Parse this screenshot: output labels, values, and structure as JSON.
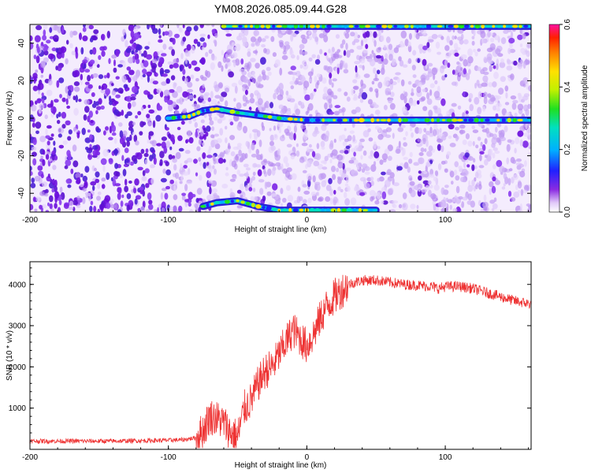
{
  "title": "YM08.2026.085.09.44.G28",
  "chart_data": [
    {
      "type": "heatmap",
      "xlabel": "Height of straight line (km)",
      "ylabel": "Frequency (Hz)",
      "xlim": [
        -200,
        162
      ],
      "ylim": [
        -50,
        50
      ],
      "xticks": [
        -200,
        -100,
        0,
        100
      ],
      "yticks": [
        -40,
        -20,
        0,
        20,
        40
      ],
      "colorbar": {
        "label": "Normalized spectral amplitude",
        "range": [
          0.0,
          0.6
        ],
        "ticks": [
          "0.0",
          "0.2",
          "0.4",
          "0.6"
        ]
      },
      "features": [
        {
          "name": "carrier line",
          "points": [
            [
              -100,
              0
            ],
            [
              -85,
              1
            ],
            [
              -75,
              4
            ],
            [
              -65,
              5
            ],
            [
              -50,
              3
            ],
            [
              -40,
              2
            ],
            [
              -30,
              1
            ],
            [
              -20,
              0
            ],
            [
              0,
              -1
            ],
            [
              162,
              -1
            ]
          ]
        },
        {
          "name": "aliased line",
          "points": [
            [
              -75,
              -47
            ],
            [
              -65,
              -45
            ],
            [
              -50,
              -44
            ],
            [
              -35,
              -47
            ],
            [
              -20,
              -49
            ],
            [
              0,
              -49
            ],
            [
              50,
              -49
            ]
          ]
        },
        {
          "name": "aliased line top",
          "points": [
            [
              -60,
              49
            ],
            [
              0,
              49
            ],
            [
              100,
              49
            ],
            [
              162,
              49
            ]
          ]
        }
      ]
    },
    {
      "type": "line",
      "xlabel": "Height of straight line (km)",
      "ylabel": "SNR (10 * v/v)",
      "xlim": [
        -200,
        162
      ],
      "ylim": [
        0,
        4550
      ],
      "xticks": [
        -200,
        -100,
        0,
        100
      ],
      "yticks": [
        1000,
        2000,
        3000,
        4000
      ],
      "color": "#ee3333",
      "series": [
        {
          "x": [
            -200,
            -180,
            -160,
            -140,
            -120,
            -100,
            -90,
            -80,
            -75,
            -70,
            -65,
            -60,
            -55,
            -50,
            -45,
            -40,
            -35,
            -30,
            -25,
            -20,
            -15,
            -10,
            -5,
            0,
            5,
            10,
            15,
            20,
            25,
            30,
            40,
            50,
            60,
            70,
            80,
            90,
            95,
            100,
            110,
            120,
            130,
            140,
            150,
            162
          ],
          "values": [
            200,
            200,
            200,
            200,
            210,
            220,
            230,
            280,
            450,
            800,
            750,
            650,
            400,
            300,
            1000,
            1200,
            1600,
            1900,
            2000,
            2300,
            2600,
            2900,
            2700,
            2500,
            2800,
            3200,
            3500,
            3700,
            3850,
            4000,
            4100,
            4100,
            4050,
            4000,
            3980,
            3950,
            3900,
            3950,
            3950,
            3900,
            3800,
            3700,
            3600,
            3520
          ]
        }
      ]
    }
  ]
}
